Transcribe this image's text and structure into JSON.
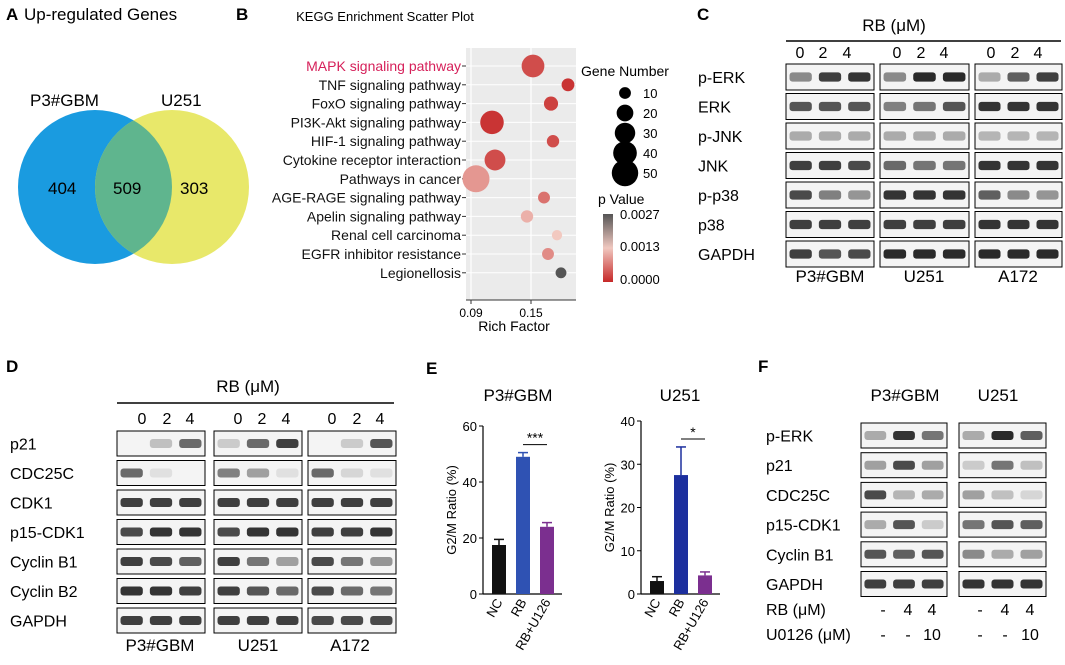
{
  "panels": {
    "A": {
      "letter": "A",
      "title": "Up-regulated Genes",
      "sets": [
        "P3#GBM",
        "U251"
      ],
      "left_only": "404",
      "overlap": "509",
      "right_only": "303",
      "colors": {
        "left": "#1a9be0",
        "right": "#e8e86a",
        "overlap": "#5fb58e"
      }
    },
    "B": {
      "letter": "B",
      "chart_data": {
        "type": "scatter",
        "title": "KEGG Enrichment Scatter Plot",
        "xlabel": "Rich Factor",
        "ylabel": "",
        "xlim": [
          0.085,
          0.195
        ],
        "xticks": [
          "0.09",
          "0.15"
        ],
        "xtick_values": [
          0.09,
          0.15
        ],
        "pathways": [
          {
            "label": "MAPK signaling pathway",
            "x": 0.152,
            "size": 44,
            "p": 0.0003,
            "highlight": true
          },
          {
            "label": "TNF signaling pathway",
            "x": 0.187,
            "size": 14,
            "p": 0.0001
          },
          {
            "label": "FoxO signaling pathway",
            "x": 0.17,
            "size": 17,
            "p": 0.0002
          },
          {
            "label": "PI3K-Akt signaling pathway",
            "x": 0.111,
            "size": 47,
            "p": 0.0001
          },
          {
            "label": "HIF-1 signaling pathway",
            "x": 0.172,
            "size": 13,
            "p": 0.0003
          },
          {
            "label": "Cytokine receptor interaction",
            "x": 0.114,
            "size": 37,
            "p": 0.0003
          },
          {
            "label": "Pathways in cancer",
            "x": 0.095,
            "size": 62,
            "p": 0.0009
          },
          {
            "label": "AGE-RAGE signaling pathway",
            "x": 0.163,
            "size": 12,
            "p": 0.0006
          },
          {
            "label": "Apelin signaling pathway",
            "x": 0.146,
            "size": 13,
            "p": 0.0011
          },
          {
            "label": "Renal cell carcinoma",
            "x": 0.176,
            "size": 9,
            "p": 0.0013
          },
          {
            "label": "EGFR  inhibitor resistance",
            "x": 0.167,
            "size": 12,
            "p": 0.0008
          },
          {
            "label": "Legionellosis",
            "x": 0.18,
            "size": 10,
            "p": 0.0027
          }
        ],
        "size_legend": {
          "title": "Gene Number",
          "values": [
            "10",
            "20",
            "30",
            "40",
            "50"
          ]
        },
        "color_legend": {
          "title": "p Value",
          "labels": [
            "0.0027",
            "0.0013",
            "0.0000"
          ],
          "low_color": "#c62828",
          "high_color": "#555555"
        },
        "highlight_color": "#d6205a"
      }
    },
    "C": {
      "letter": "C",
      "treatment": "RB (μM)",
      "doses": [
        "0",
        "2",
        "4"
      ],
      "cells": [
        "P3#GBM",
        "U251",
        "A172"
      ],
      "rows": [
        "p-ERK",
        "ERK",
        "p-JNK",
        "JNK",
        "p-p38",
        "p38",
        "GAPDH"
      ]
    },
    "D": {
      "letter": "D",
      "treatment": "RB (μM)",
      "doses": [
        "0",
        "2",
        "4"
      ],
      "cells": [
        "P3#GBM",
        "U251",
        "A172"
      ],
      "rows": [
        "p21",
        "CDC25C",
        "CDK1",
        "p15-CDK1",
        "Cyclin B1",
        "Cyclin B2",
        "GAPDH"
      ]
    },
    "E": {
      "letter": "E",
      "chart_data": [
        {
          "type": "bar",
          "title": "P3#GBM",
          "ylabel": "G2/M Ratio (%)",
          "categories": [
            "NC",
            "RB",
            "RB+U126"
          ],
          "values": [
            17.5,
            49,
            24
          ],
          "errors": [
            2,
            1.5,
            1.5
          ],
          "ylim": [
            0,
            60
          ],
          "yticks": [
            "0",
            "20",
            "40",
            "60"
          ],
          "ytick_values": [
            0,
            20,
            40,
            60
          ],
          "significance": "***",
          "colors": [
            "#111111",
            "#2f52b3",
            "#7b2f8f"
          ]
        },
        {
          "type": "bar",
          "title": "U251",
          "ylabel": "G2/M Ratio (%)",
          "categories": [
            "NC",
            "RB",
            "RB+U126"
          ],
          "values": [
            3,
            27.5,
            4.3
          ],
          "errors": [
            1,
            6.5,
            0.8
          ],
          "ylim": [
            0,
            40
          ],
          "yticks": [
            "0",
            "10",
            "20",
            "30",
            "40"
          ],
          "ytick_values": [
            0,
            10,
            20,
            30,
            40
          ],
          "significance": "*",
          "colors": [
            "#111111",
            "#1c2f9e",
            "#7b2f8f"
          ]
        }
      ]
    },
    "F": {
      "letter": "F",
      "cells": [
        "P3#GBM",
        "U251"
      ],
      "rows": [
        "p-ERK",
        "p21",
        "CDC25C",
        "p15-CDK1",
        "Cyclin B1",
        "GAPDH"
      ],
      "rb_label": "RB (μM)",
      "rb_values": [
        "-",
        "4",
        "4",
        "-",
        "4",
        "4"
      ],
      "u_label": "U0126 (μM)",
      "u_values": [
        "-",
        "-",
        "10",
        "-",
        "-",
        "10"
      ]
    }
  }
}
